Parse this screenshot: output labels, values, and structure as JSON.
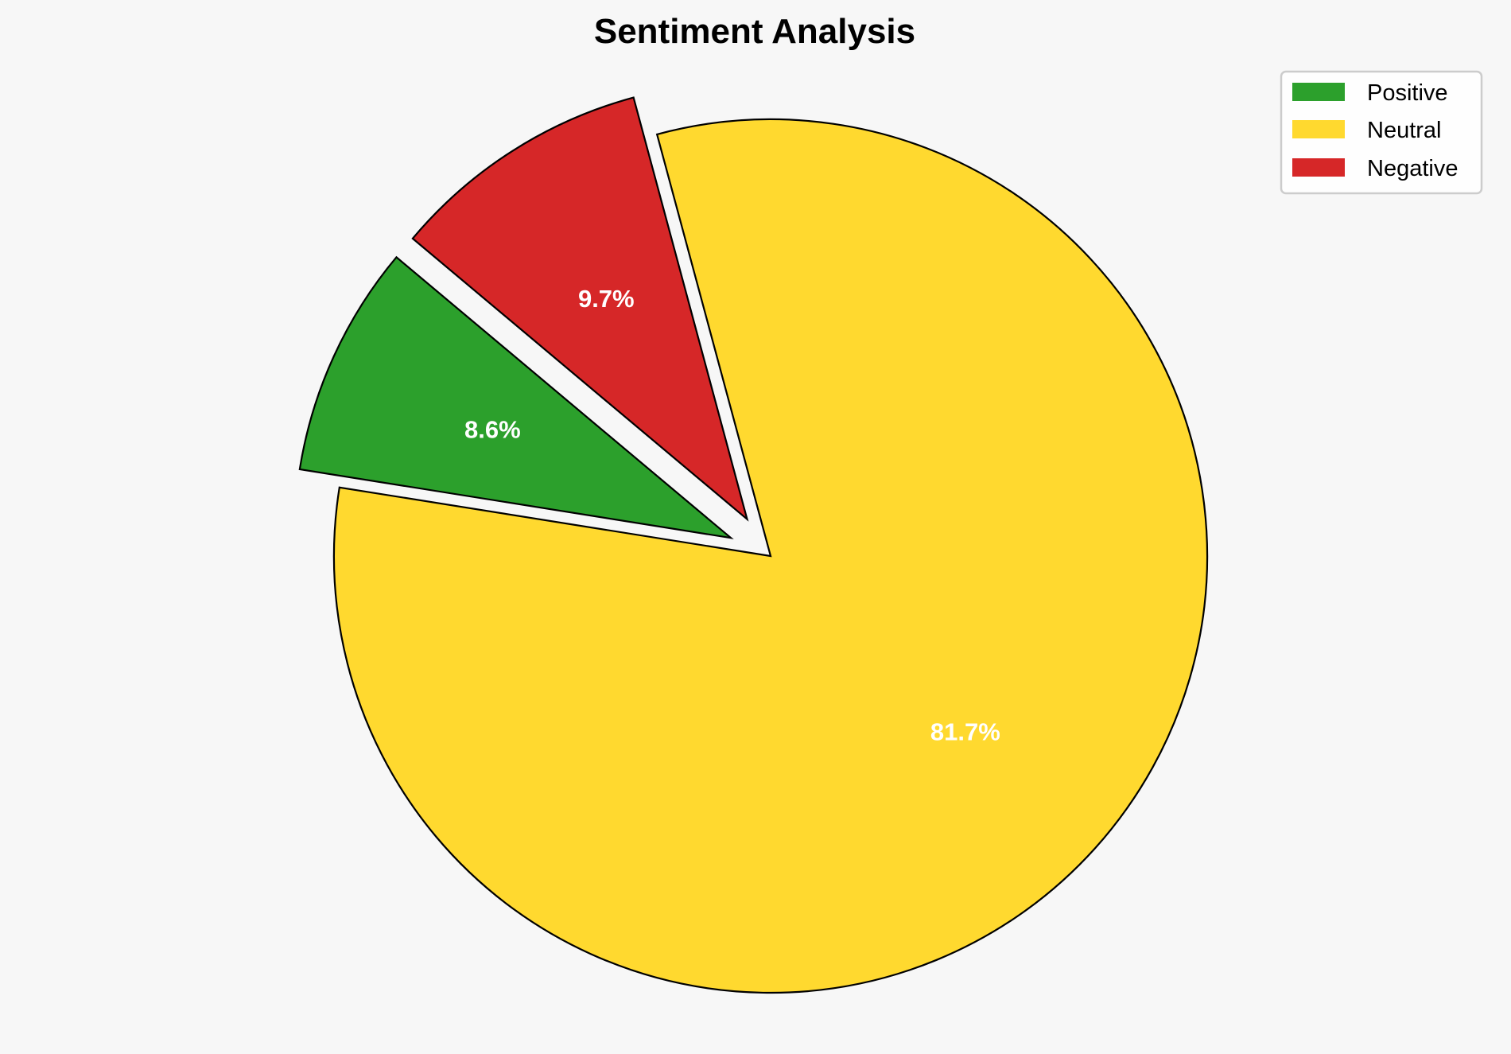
{
  "chart_data": {
    "type": "pie",
    "title": "Sentiment Analysis",
    "categories": [
      "Positive",
      "Neutral",
      "Negative"
    ],
    "values": [
      8.6,
      81.7,
      9.7
    ],
    "labels": [
      "8.6%",
      "81.7%",
      "9.7%"
    ],
    "colors": [
      "#2ca02c",
      "#ffd92f",
      "#d62728"
    ],
    "explode": [
      0.1,
      0,
      0.1
    ],
    "start_angle": 140,
    "direction": "counterclockwise",
    "legend": {
      "placement": "top-right",
      "entries": [
        "Positive",
        "Neutral",
        "Negative"
      ]
    }
  },
  "background": "#f7f7f7"
}
